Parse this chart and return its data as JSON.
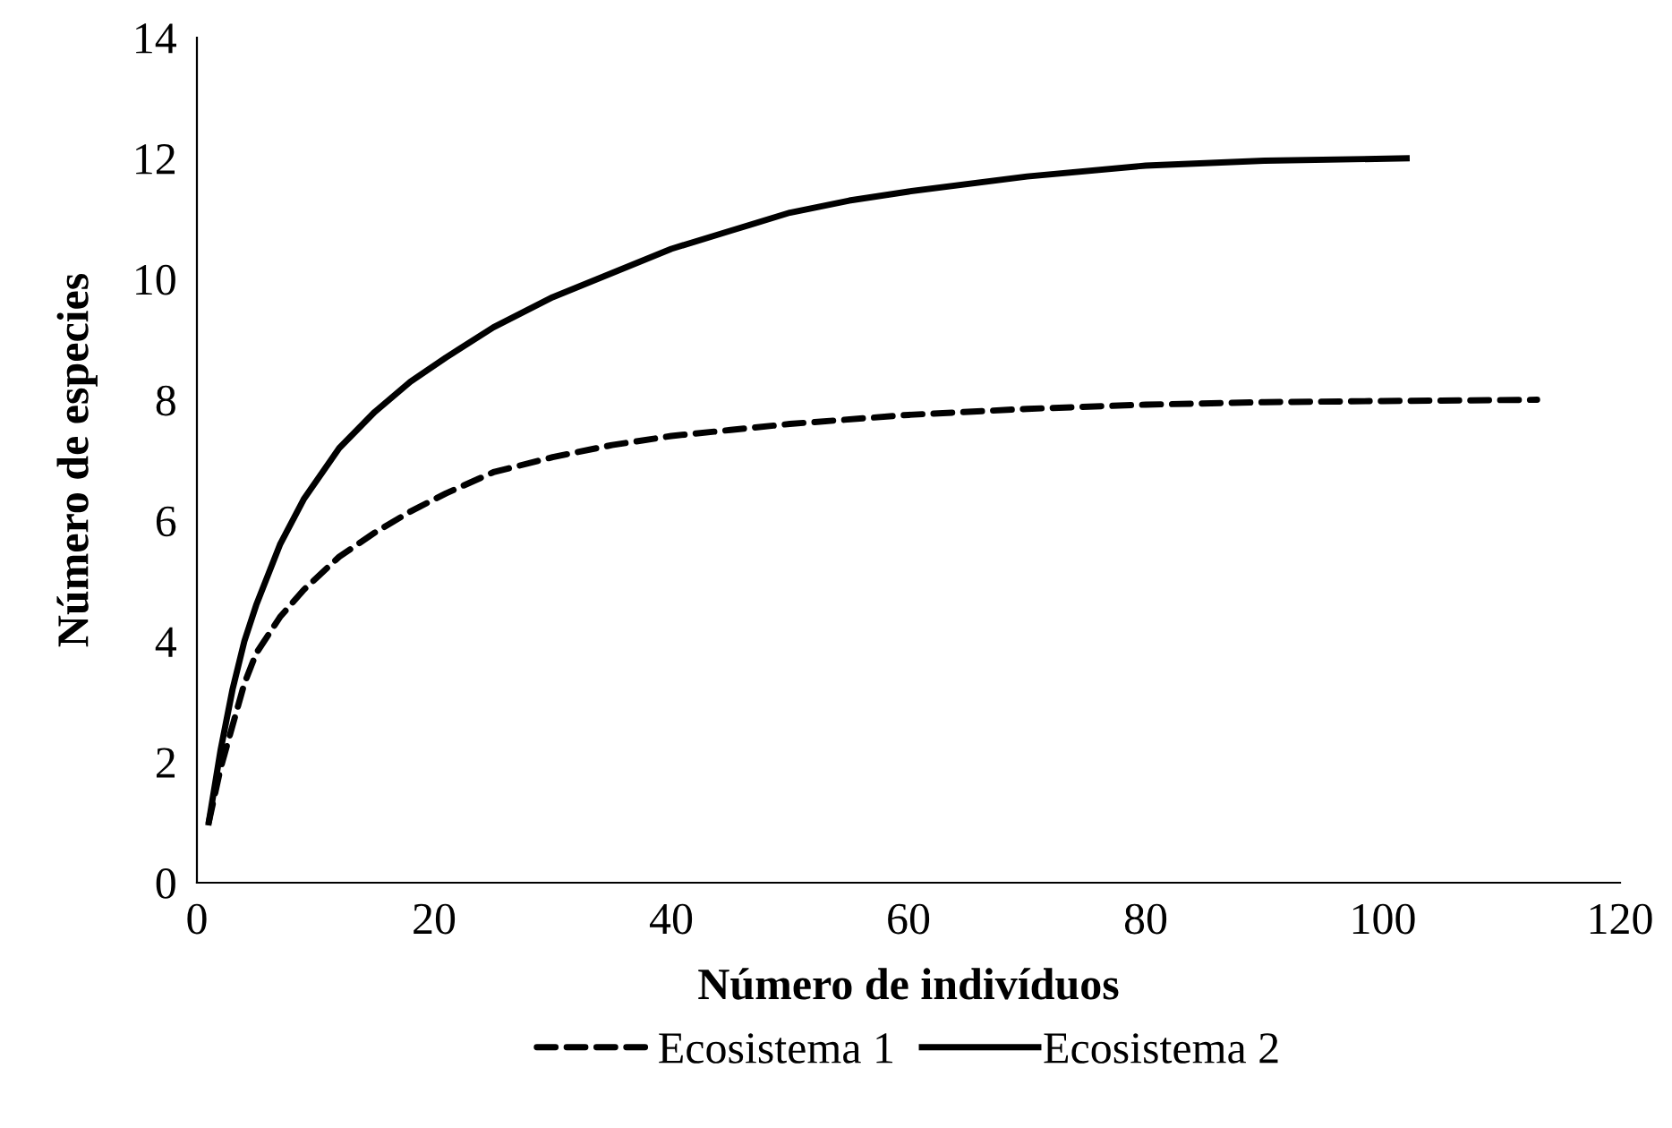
{
  "chart_data": {
    "type": "line",
    "xlabel": "Número de indivíduos",
    "ylabel": "Número de especies",
    "xlim": [
      0,
      120
    ],
    "ylim": [
      0,
      14
    ],
    "xticks": [
      0,
      20,
      40,
      60,
      80,
      100,
      120
    ],
    "yticks": [
      0,
      2,
      4,
      6,
      8,
      10,
      12,
      14
    ],
    "grid": false,
    "legend": "bottom",
    "marker": "none",
    "series": [
      {
        "name": "Ecosistema 1",
        "color": "#000000",
        "line_style": "dashed",
        "x": [
          1,
          2,
          3,
          4,
          5,
          7,
          9,
          12,
          15,
          18,
          21,
          25,
          30,
          35,
          40,
          45,
          50,
          60,
          70,
          80,
          90,
          100,
          113
        ],
        "values": [
          1,
          1.9,
          2.6,
          3.3,
          3.8,
          4.4,
          4.85,
          5.4,
          5.8,
          6.15,
          6.45,
          6.8,
          7.05,
          7.25,
          7.4,
          7.5,
          7.6,
          7.75,
          7.85,
          7.92,
          7.96,
          7.98,
          8.0
        ]
      },
      {
        "name": "Ecosistema 2",
        "color": "#000000",
        "line_style": "solid",
        "x": [
          1,
          2,
          3,
          4,
          5,
          7,
          9,
          12,
          15,
          18,
          21,
          25,
          30,
          35,
          40,
          45,
          50,
          55,
          60,
          70,
          80,
          90,
          102
        ],
        "values": [
          1,
          2.2,
          3.2,
          4.0,
          4.6,
          5.6,
          6.35,
          7.2,
          7.8,
          8.3,
          8.7,
          9.2,
          9.7,
          10.1,
          10.5,
          10.8,
          11.1,
          11.3,
          11.45,
          11.7,
          11.88,
          11.96,
          12.0
        ]
      }
    ]
  }
}
